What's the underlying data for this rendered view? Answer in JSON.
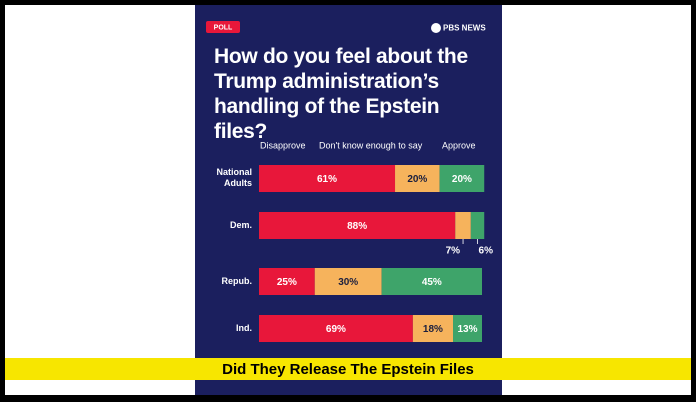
{
  "badge": "POLL",
  "logo": "PBS NEWS",
  "banner": "Did They Release The Epstein Files",
  "chart_data": {
    "type": "bar",
    "orientation": "horizontal",
    "stacked": true,
    "title": "How do you feel about the Trump administration’s handling of the Epstein files?",
    "categories": [
      "National Adults",
      "Dem.",
      "Repub.",
      "Ind."
    ],
    "series": [
      {
        "name": "Disapprove",
        "color": "#e8173a",
        "values": [
          61,
          88,
          25,
          69
        ],
        "value_labels": [
          "61%",
          "88%",
          "25%",
          "69%"
        ]
      },
      {
        "name": "Don't know enough to say",
        "color": "#f6b35c",
        "values": [
          20,
          7,
          30,
          18
        ],
        "value_labels": [
          "20%",
          "7%",
          "30%",
          "18%"
        ]
      },
      {
        "name": "Approve",
        "color": "#3ea46a",
        "values": [
          20,
          6,
          45,
          13
        ],
        "value_labels": [
          "20%",
          "6%",
          "45%",
          "13%"
        ]
      }
    ]
  }
}
